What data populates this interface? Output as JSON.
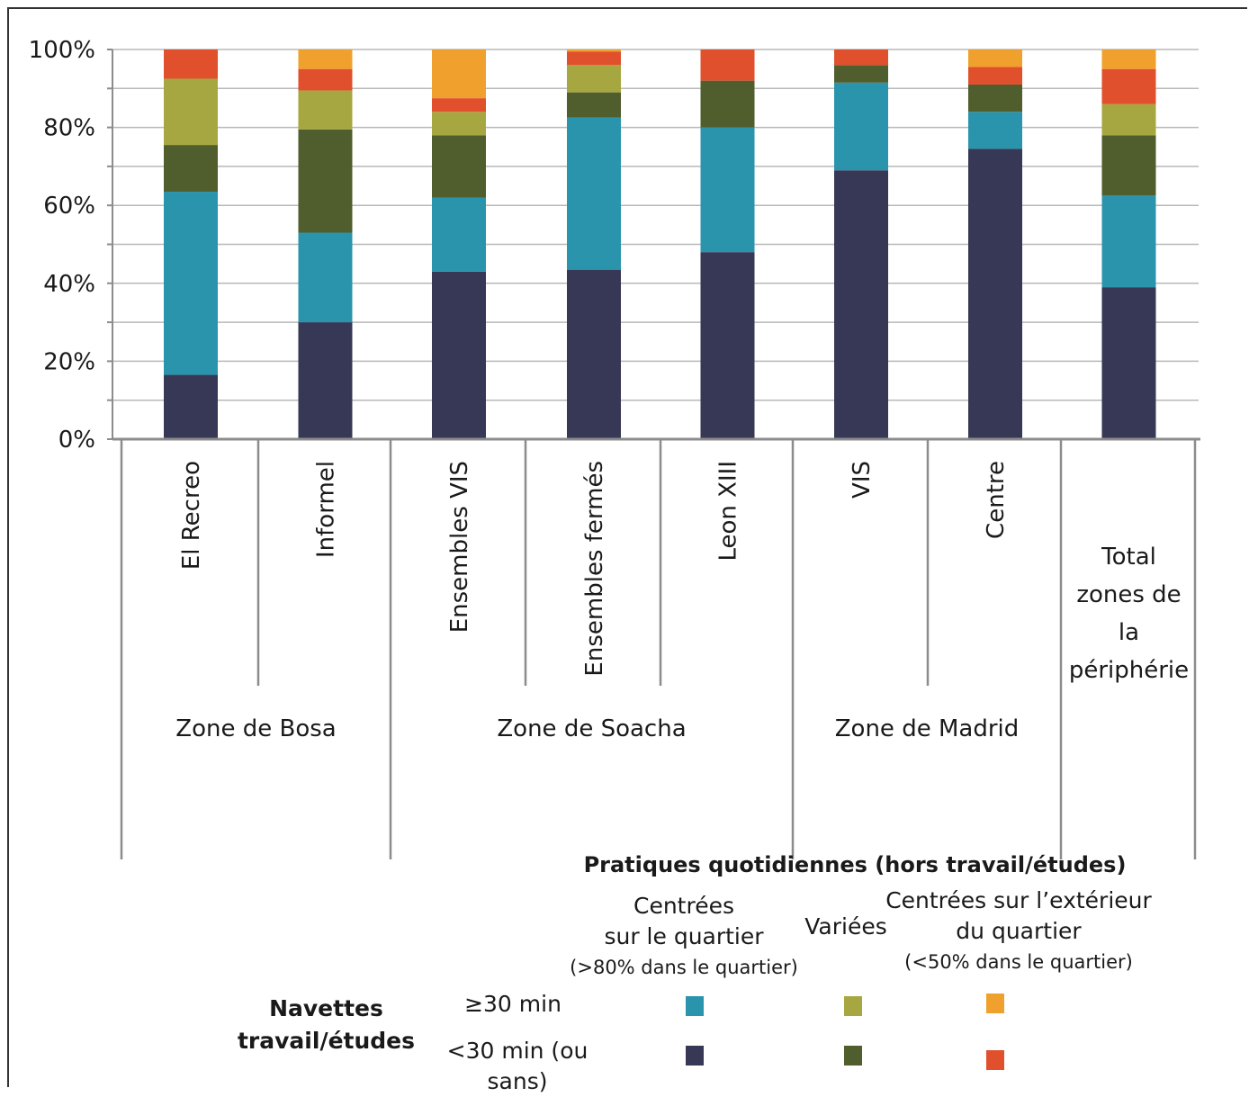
{
  "colors": {
    "centered_ge30": "#2b94ad",
    "centered_lt30": "#363856",
    "varied_ge30": "#a7a742",
    "varied_lt30": "#505d2d",
    "exterior_ge30": "#f0a12d",
    "exterior_lt30": "#e0502d",
    "grid": "#b8b8b8",
    "axis": "#8c8c8c"
  },
  "chart_data": {
    "type": "bar",
    "stacked": true,
    "percent": true,
    "ylim": [
      0,
      100
    ],
    "yticks": [
      "0%",
      "20%",
      "40%",
      "60%",
      "80%",
      "100%"
    ],
    "grid": true,
    "categories": [
      "El Recreo",
      "Informel",
      "Ensembles VIS",
      "Ensembles fermés",
      "Leon XIII",
      "VIS",
      "Centre",
      "Total zones de la périphérie"
    ],
    "total_label_lines": [
      "Total",
      "zones de",
      "la",
      "périphérie"
    ],
    "groups": [
      {
        "label": "Zone de Bosa",
        "members": [
          0,
          1
        ]
      },
      {
        "label": "Zone de Soacha",
        "members": [
          2,
          3,
          4
        ]
      },
      {
        "label": "Zone de Madrid",
        "members": [
          5,
          6
        ]
      }
    ],
    "series": [
      {
        "key": "centered_lt30",
        "values": [
          16.5,
          30,
          43,
          43.5,
          48,
          69,
          74.5,
          39
        ]
      },
      {
        "key": "centered_ge30",
        "values": [
          47,
          23,
          19,
          39,
          32,
          22.5,
          9.5,
          23.5
        ]
      },
      {
        "key": "varied_lt30",
        "values": [
          12,
          26.5,
          16,
          6.5,
          12,
          4.5,
          7,
          15.5
        ]
      },
      {
        "key": "varied_ge30",
        "values": [
          17,
          10,
          6,
          7,
          0,
          0,
          0,
          8
        ]
      },
      {
        "key": "exterior_lt30",
        "values": [
          7.5,
          5.5,
          3.5,
          3.5,
          8,
          4,
          4.5,
          9
        ]
      },
      {
        "key": "exterior_ge30",
        "values": [
          0,
          5,
          12.5,
          0.5,
          0,
          0,
          4.5,
          5
        ]
      }
    ]
  },
  "legend": {
    "title": "Pratiques quotidiennes (hors travail/études)",
    "col_centered": [
      "Centrées",
      "sur le quartier"
    ],
    "col_centered_note": "(>80% dans le quartier)",
    "col_varied": "Variées",
    "col_exterior": [
      "Centrées sur l’extérieur",
      "du quartier"
    ],
    "col_exterior_note": "(<50% dans le quartier)",
    "row_title": [
      "Navettes",
      "travail/études"
    ],
    "row_ge30": "≥30 min",
    "row_lt30": "<30 min (ou sans)"
  }
}
